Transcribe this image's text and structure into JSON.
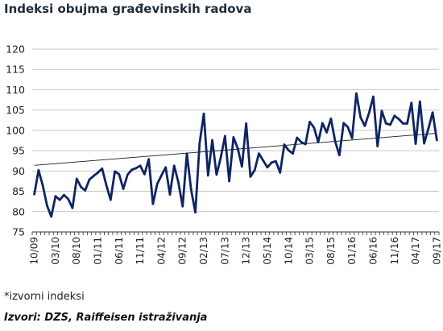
{
  "title": "Indeksi obujma građevinskih radova",
  "note": "*izvorni indeksi",
  "source": "Izvori: DZS, Raiffeisen istraživanja",
  "colors": {
    "series": "#0f2463",
    "trend": "#1a1a1a",
    "grid": "#c6c6c6",
    "axis": "#333333"
  },
  "chart_data": {
    "type": "line",
    "title": "Indeksi obujma građevinskih radova",
    "xlabel": "",
    "ylabel": "",
    "ylim": [
      75,
      120
    ],
    "yticks": [
      75,
      80,
      85,
      90,
      95,
      100,
      105,
      110,
      115,
      120
    ],
    "grid": "horizontal",
    "legend": "none",
    "start_period": "10/09",
    "x_tick_labels": [
      "10/09",
      "03/10",
      "08/10",
      "01/11",
      "06/11",
      "11/11",
      "04/12",
      "09/12",
      "02/13",
      "07/13",
      "12/13",
      "05/14",
      "10/14",
      "03/15",
      "08/15",
      "01/16",
      "06/16",
      "11/16",
      "04/17",
      "09/17"
    ],
    "series": [
      {
        "values": [
          84.3,
          90.2,
          86.4,
          81.5,
          78.8,
          83.8,
          82.9,
          84.1,
          83.1,
          80.9,
          88.1,
          86.1,
          85.2,
          87.9,
          88.8,
          89.6,
          90.6,
          86.5,
          82.9,
          89.9,
          89.2,
          85.6,
          89.1,
          90.3,
          90.7,
          91.3,
          89.2,
          92.9,
          81.9,
          86.8,
          88.9,
          90.9,
          84.2,
          91.3,
          87.2,
          81.3,
          94.3,
          85.4,
          79.8,
          96.8,
          104.1,
          88.9,
          97.6,
          89.1,
          93.3,
          98.6,
          87.5,
          98.3,
          95.6,
          91.1,
          101.7,
          88.6,
          90.2,
          94.3,
          92.6,
          90.9,
          92.1,
          92.4,
          89.6,
          96.5,
          95.1,
          94.3,
          98.2,
          97.1,
          96.6,
          102.1,
          100.7,
          97.1,
          101.8,
          99.5,
          102.9,
          97.3,
          93.9,
          101.8,
          100.8,
          98.1,
          109.1,
          103.2,
          101.1,
          104.3,
          108.3,
          96.1,
          104.8,
          101.7,
          101.4,
          103.6,
          102.8,
          101.7,
          101.7,
          106.8,
          96.7,
          107.1,
          96.8,
          100.4,
          104.4,
          97.6
        ]
      }
    ],
    "trendline": {
      "start": 91.4,
      "end": 99.3
    }
  }
}
